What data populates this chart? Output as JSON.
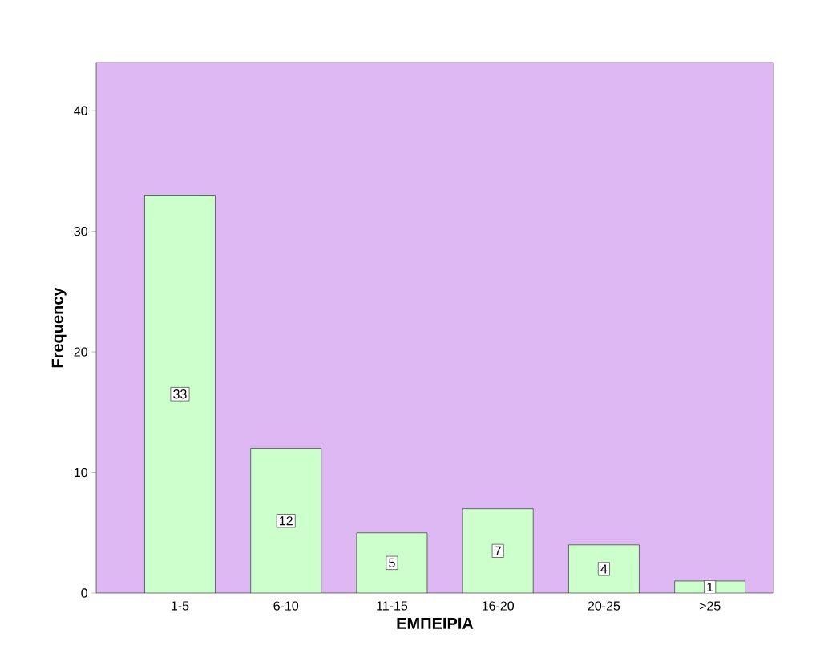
{
  "chart_data": {
    "type": "bar",
    "xlabel": "ΕΜΠΕΙΡΙΑ",
    "ylabel": "Frequency",
    "categories": [
      "1-5",
      "6-10",
      "11-15",
      "16-20",
      "20-25",
      ">25"
    ],
    "values": [
      33,
      12,
      5,
      7,
      4,
      1
    ],
    "color": "#ccffcc",
    "ylim": [
      0,
      44
    ],
    "yticks": [
      0,
      10,
      20,
      30,
      40
    ],
    "data_labels": true,
    "grid": false
  }
}
